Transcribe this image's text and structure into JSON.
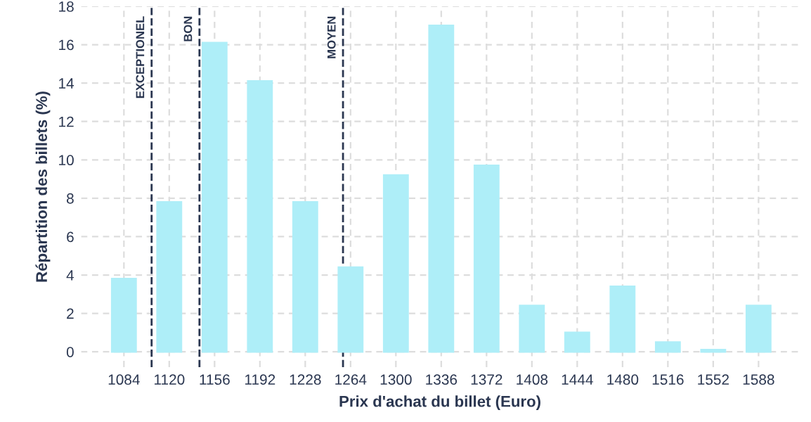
{
  "chart_data": {
    "type": "bar",
    "xlabel": "Prix d'achat du billet (Euro)",
    "ylabel": "Répartition des billets (%)",
    "x": [
      1084,
      1120,
      1156,
      1192,
      1228,
      1264,
      1300,
      1336,
      1372,
      1408,
      1444,
      1480,
      1516,
      1552,
      1588
    ],
    "values": [
      3.8,
      7.8,
      16.1,
      14.1,
      7.8,
      4.4,
      9.2,
      17.0,
      9.7,
      2.4,
      1.0,
      3.4,
      0.5,
      0.1,
      2.4
    ],
    "color": "#aeeef8",
    "xlim": [
      1050,
      1620
    ],
    "xticks": [
      1084,
      1120,
      1156,
      1192,
      1228,
      1264,
      1300,
      1336,
      1372,
      1408,
      1444,
      1480,
      1516,
      1552,
      1588
    ],
    "ylim": [
      -0.8,
      18
    ],
    "yticks": [
      0,
      2,
      4,
      6,
      8,
      10,
      12,
      14,
      16,
      18
    ],
    "grid": true,
    "ref_lines": [
      {
        "axis": "x",
        "value": 1106,
        "label": "EXCEPTIONEL",
        "color": "#2a3650",
        "line_style": "dashed"
      },
      {
        "axis": "x",
        "value": 1144,
        "label": "BON",
        "color": "#2a3650",
        "line_style": "dashed"
      },
      {
        "axis": "x",
        "value": 1258,
        "label": "MOYEN",
        "color": "#2a3650",
        "line_style": "dashed"
      }
    ]
  }
}
